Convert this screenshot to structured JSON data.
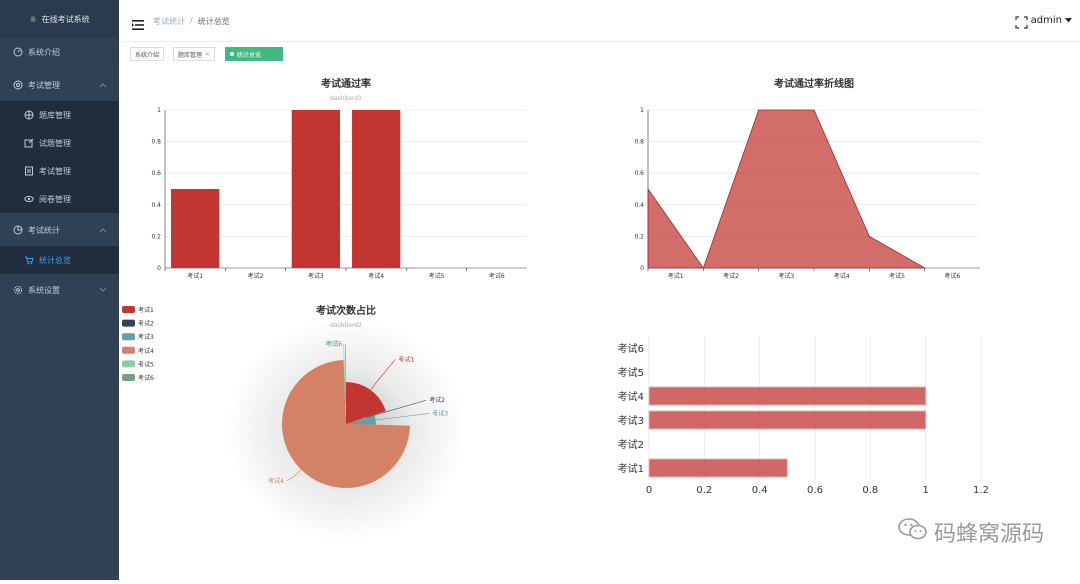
{
  "app": {
    "title": "在线考试系统"
  },
  "sidebar": {
    "items": [
      {
        "label": "系统介绍"
      },
      {
        "label": "考试管理"
      },
      {
        "label": "题库管理"
      },
      {
        "label": "试题管理"
      },
      {
        "label": "考试管理"
      },
      {
        "label": "阅卷管理"
      },
      {
        "label": "考试统计"
      },
      {
        "label": "统计总览"
      },
      {
        "label": "系统设置"
      }
    ]
  },
  "header": {
    "breadcrumb": [
      "考试统计",
      "统计总览"
    ],
    "separator": "/",
    "user": "admin"
  },
  "tags": [
    {
      "label": "系统介绍"
    },
    {
      "label": "题库管理",
      "close": "×"
    },
    {
      "label": "统计总览"
    }
  ],
  "colors": {
    "sidebar_bg": "#304156",
    "active": "#409eff",
    "bar": "#c23531",
    "tag_active": "#42b983"
  },
  "watermark": "码蜂窝源码",
  "chart_data": [
    {
      "type": "bar",
      "title": "考试通过率",
      "subtitle": "dashbord1",
      "categories": [
        "考试1",
        "考试2",
        "考试3",
        "考试4",
        "考试5",
        "考试6"
      ],
      "values": [
        0.5,
        0,
        1,
        1,
        0,
        0
      ],
      "ylim": [
        0,
        1
      ],
      "yticks": [
        "0",
        "0.2",
        "0.4",
        "0.6",
        "0.8",
        "1"
      ]
    },
    {
      "type": "area",
      "title": "考试通过率折线图",
      "categories": [
        "考试1",
        "考试2",
        "考试3",
        "考试4",
        "考试5",
        "考试6"
      ],
      "values": [
        0.5,
        0,
        1,
        1,
        0.2,
        0
      ],
      "ylim": [
        0,
        1
      ],
      "yticks": [
        "0",
        "0.2",
        "0.4",
        "0.6",
        "0.8",
        "1"
      ]
    },
    {
      "type": "pie",
      "title": "考试次数占比",
      "subtitle": "dashbord2",
      "legend": [
        "考试1",
        "考试2",
        "考试3",
        "考试4",
        "考试5",
        "考试6"
      ],
      "slices": [
        {
          "name": "考试1",
          "value": 20,
          "color": "#c23531"
        },
        {
          "name": "考试2",
          "value": 0.4,
          "color": "#2f4554"
        },
        {
          "name": "考试3",
          "value": 5,
          "color": "#61a0a8"
        },
        {
          "name": "考试4",
          "value": 74,
          "color": "#d48265"
        },
        {
          "name": "考试5",
          "value": 0.3,
          "color": "#91c7ae"
        },
        {
          "name": "考试6",
          "value": 0.3,
          "color": "#749f83"
        }
      ]
    },
    {
      "type": "bar",
      "orientation": "horizontal",
      "categories": [
        "考试1",
        "考试2",
        "考试3",
        "考试4",
        "考试5",
        "考试6"
      ],
      "values": [
        0.5,
        0,
        1,
        1,
        0,
        0
      ],
      "xlim": [
        0,
        1.2
      ],
      "xticks": [
        "0",
        "0.2",
        "0.4",
        "0.6",
        "0.8",
        "1",
        "1.2"
      ]
    }
  ]
}
